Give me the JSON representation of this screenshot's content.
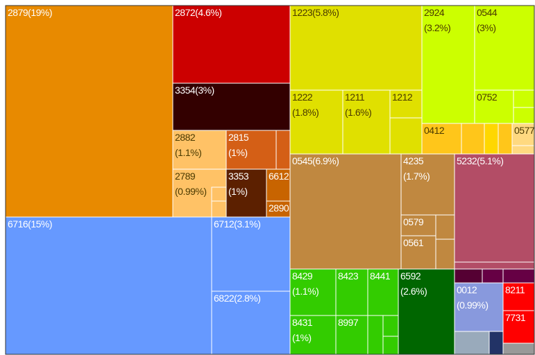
{
  "chart_data": {
    "type": "treemap",
    "categories": [
      "2879",
      "2872",
      "3354",
      "2882",
      "2815",
      "2789",
      "3353",
      "6612",
      "2890",
      "6716",
      "6712",
      "6822",
      "1223",
      "1222",
      "1211",
      "1212",
      "2924",
      "0544",
      "0752",
      "0412",
      "0577",
      "0545",
      "4235",
      "0579",
      "0561",
      "5232",
      "8429",
      "8431",
      "8423",
      "8441",
      "8997",
      "6592",
      "0012",
      "8211",
      "7731"
    ],
    "values": [
      19,
      4.6,
      3,
      1.1,
      1,
      0.99,
      1,
      0.41,
      0.2,
      15,
      3.1,
      2.8,
      5.8,
      1.8,
      1.6,
      1.1,
      3.2,
      3,
      0.7,
      0.65,
      0.27,
      6.9,
      1.7,
      0.39,
      0.62,
      5.1,
      1.1,
      1,
      0.8,
      0.77,
      0.68,
      2.6,
      0.99,
      0.48,
      0.56
    ],
    "value_labels": [
      "(19%)",
      "(4.6%)",
      "(3%)",
      "(1.1%)",
      "(1%)",
      "(0.99%)",
      "(1%)",
      null,
      null,
      "(15%)",
      "(3.1%)",
      "(2.8%)",
      "(5.8%)",
      "(1.8%)",
      "(1.6%)",
      null,
      "(3.2%)",
      "(3%)",
      null,
      null,
      null,
      "(6.9%)",
      "(1.7%)",
      null,
      null,
      "(5.1%)",
      "(1.1%)",
      "(1%)",
      null,
      null,
      null,
      "(2.6%)",
      "(0.99%)",
      null,
      null
    ],
    "colors": [
      "#e88a00",
      "#cc0000",
      "#330000",
      "#ffc266",
      "#d45f16",
      "#ffc266",
      "#5c2000",
      "#c86400",
      "#c86400",
      "#6699ff",
      "#6699ff",
      "#6699ff",
      "#e0e000",
      "#e0e000",
      "#e0e000",
      "#e0e000",
      "#ccff00",
      "#ccff00",
      "#ccff00",
      "#ffc61a",
      "#ffd980",
      "#c08840",
      "#c08840",
      "#c08840",
      "#c08840",
      "#b34d66",
      "#33cc00",
      "#33cc00",
      "#33cc00",
      "#33cc00",
      "#33cc00",
      "#006600",
      "#8899dd",
      "#ff0000",
      "#ff0000"
    ]
  }
}
